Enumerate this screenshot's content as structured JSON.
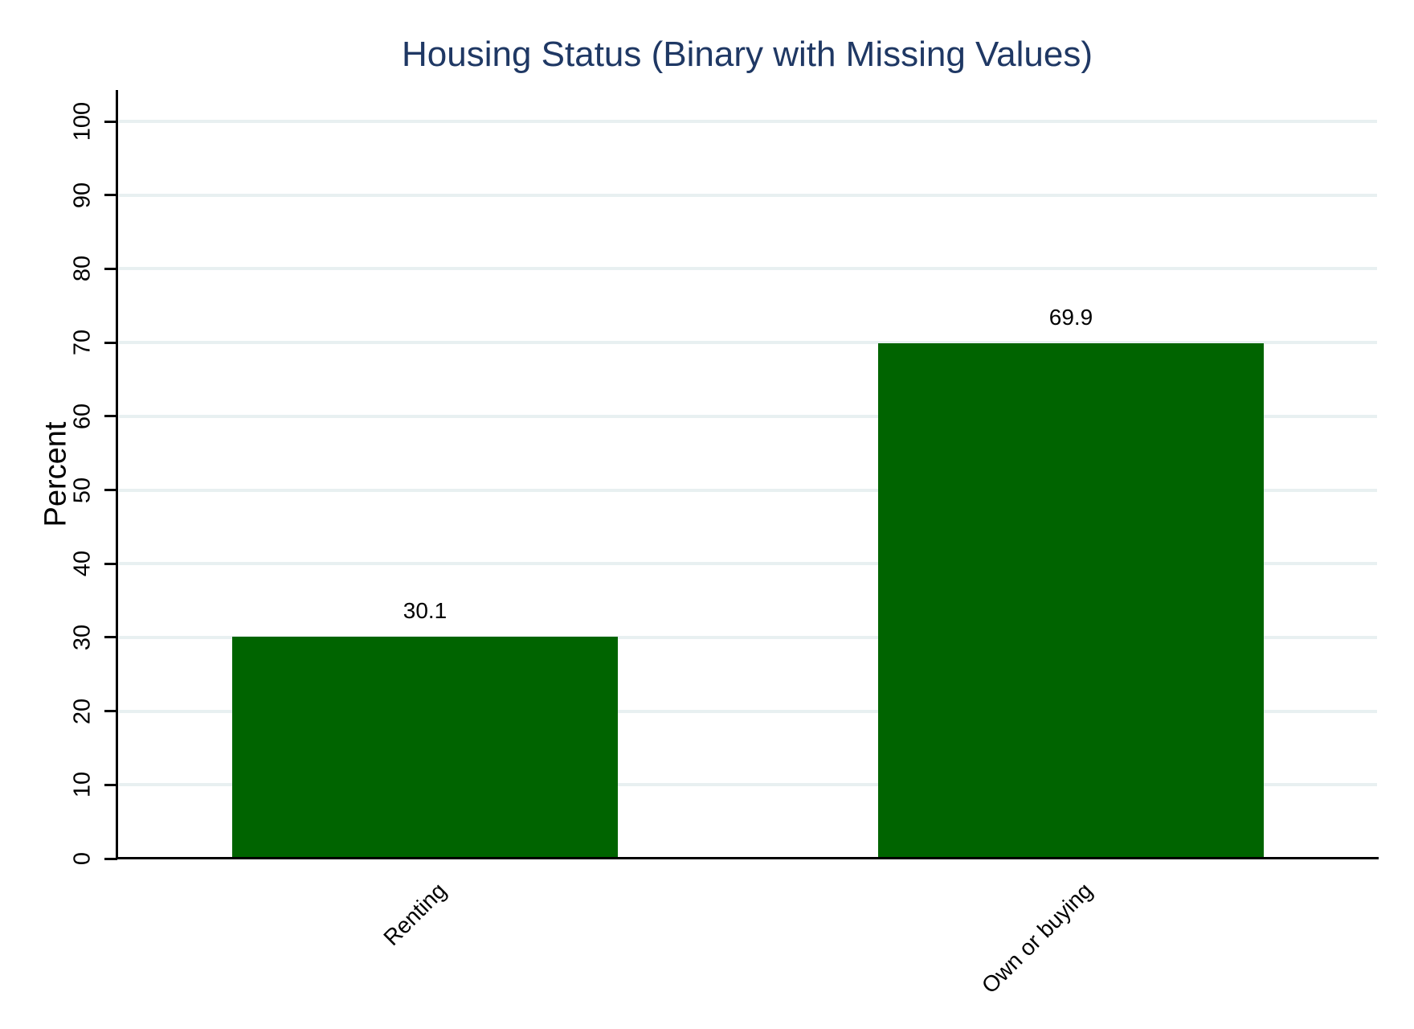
{
  "title": "Housing Status (Binary with Missing Values)",
  "chart_data": {
    "type": "bar",
    "title": "Housing Status (Binary with Missing Values)",
    "categories": [
      "Renting",
      "Own or buying"
    ],
    "values": [
      30.1,
      69.9
    ],
    "value_labels": [
      "30.1",
      "69.9"
    ],
    "xlabel": "",
    "ylabel": "Percent",
    "ylim": [
      0,
      100
    ],
    "yticks": [
      0,
      10,
      20,
      30,
      40,
      50,
      60,
      70,
      80,
      90,
      100
    ],
    "grid": true,
    "gridlines_at": [
      10,
      20,
      30,
      40,
      50,
      60,
      70,
      80,
      90,
      100
    ],
    "legend_position": "none",
    "colors": {
      "bar": "#006400",
      "grid": "#e8f0f1",
      "title": "#1f3864",
      "axis": "#000000",
      "background": "#ffffff"
    }
  }
}
